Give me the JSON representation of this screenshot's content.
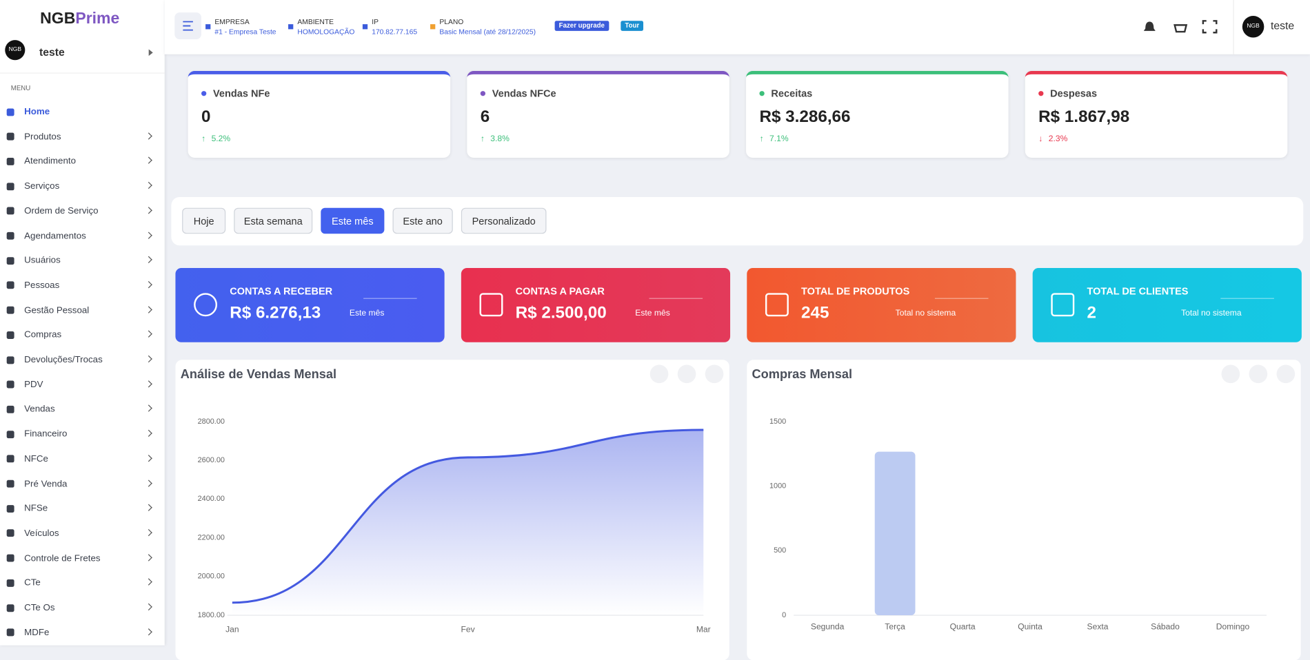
{
  "sidebar": {
    "logo": {
      "main": "NGB",
      "accent": "Prime"
    },
    "avatar": "NGB",
    "user": "teste",
    "menu_label": "MENU",
    "menu": [
      "Home",
      "Produtos",
      "Atendimento",
      "Serviços",
      "Ordem de Serviço",
      "Agendamentos",
      "Usuários",
      "Pessoas",
      "Gestão Pessoal",
      "Compras",
      "Devoluções/Trocas",
      "PDV",
      "Vendas",
      "Financeiro",
      "NFCe",
      "Pré Venda",
      "NFSe",
      "Veículos",
      "Controle de Fretes",
      "CTe",
      "CTe Os",
      "MDFe"
    ]
  },
  "header": {
    "info": [
      {
        "label": "EMPRESA",
        "value": "#1 - Empresa Teste"
      },
      {
        "label": "AMBIENTE",
        "value": "HOMOLOGAÇÃO"
      },
      {
        "label": "IP",
        "value": "170.82.77.165"
      },
      {
        "label": "PLANO",
        "value": "Basic Mensal (até 28/12/2025)"
      }
    ],
    "upgrade": "Fazer upgrade",
    "tour": "Tour",
    "avatar": "NGB",
    "user": "teste"
  },
  "kpis": [
    {
      "label": "Vendas NFe",
      "value": "0",
      "change": "5.2%"
    },
    {
      "label": "Vendas NFCe",
      "value": "6",
      "change": "3.8%"
    },
    {
      "label": "Receitas",
      "value": "R$ 3.286,66",
      "change": "7.1%"
    },
    {
      "label": "Despesas",
      "value": "R$ 1.867,98",
      "change": "2.3%"
    }
  ],
  "filters": [
    "Hoje",
    "Esta semana",
    "Este mês",
    "Este ano",
    "Personalizado"
  ],
  "stats": [
    {
      "title": "CONTAS A RECEBER",
      "value": "R$ 6.276,13",
      "note": "Este mês"
    },
    {
      "title": "CONTAS A PAGAR",
      "value": "R$ 2.500,00",
      "note": "Este mês"
    },
    {
      "title": "TOTAL DE PRODUTOS",
      "value": "245",
      "note": "Total no sistema"
    },
    {
      "title": "TOTAL DE CLIENTES",
      "value": "2",
      "note": "Total no sistema"
    }
  ],
  "chart_data": [
    {
      "type": "line",
      "title": "Análise de Vendas Mensal",
      "categories": [
        "Jan",
        "Fev",
        "Mar"
      ],
      "values": [
        1865,
        2615,
        2757
      ],
      "color": "#4459e0",
      "ylim": [
        1800,
        2800
      ],
      "yticks": [
        {
          "value": 1800,
          "label": "1800.00"
        },
        {
          "value": 2000,
          "label": "2000.00"
        },
        {
          "value": 2200,
          "label": "2200.00"
        },
        {
          "value": 2400,
          "label": "2400.00"
        },
        {
          "value": 2600,
          "label": "2600.00"
        },
        {
          "value": 2800,
          "label": "2800.00"
        }
      ],
      "grid": false
    },
    {
      "type": "bar",
      "title": "Compras Mensal",
      "categories": [
        "Segunda",
        "Terça",
        "Quarta",
        "Quinta",
        "Sexta",
        "Sábado",
        "Domingo"
      ],
      "values": [
        0,
        1267,
        0,
        0,
        0,
        0,
        0
      ],
      "color": "#bccbf2",
      "ylim": [
        0,
        1500
      ],
      "yticks": [
        0,
        500,
        1000,
        1500
      ],
      "grid": false
    }
  ]
}
